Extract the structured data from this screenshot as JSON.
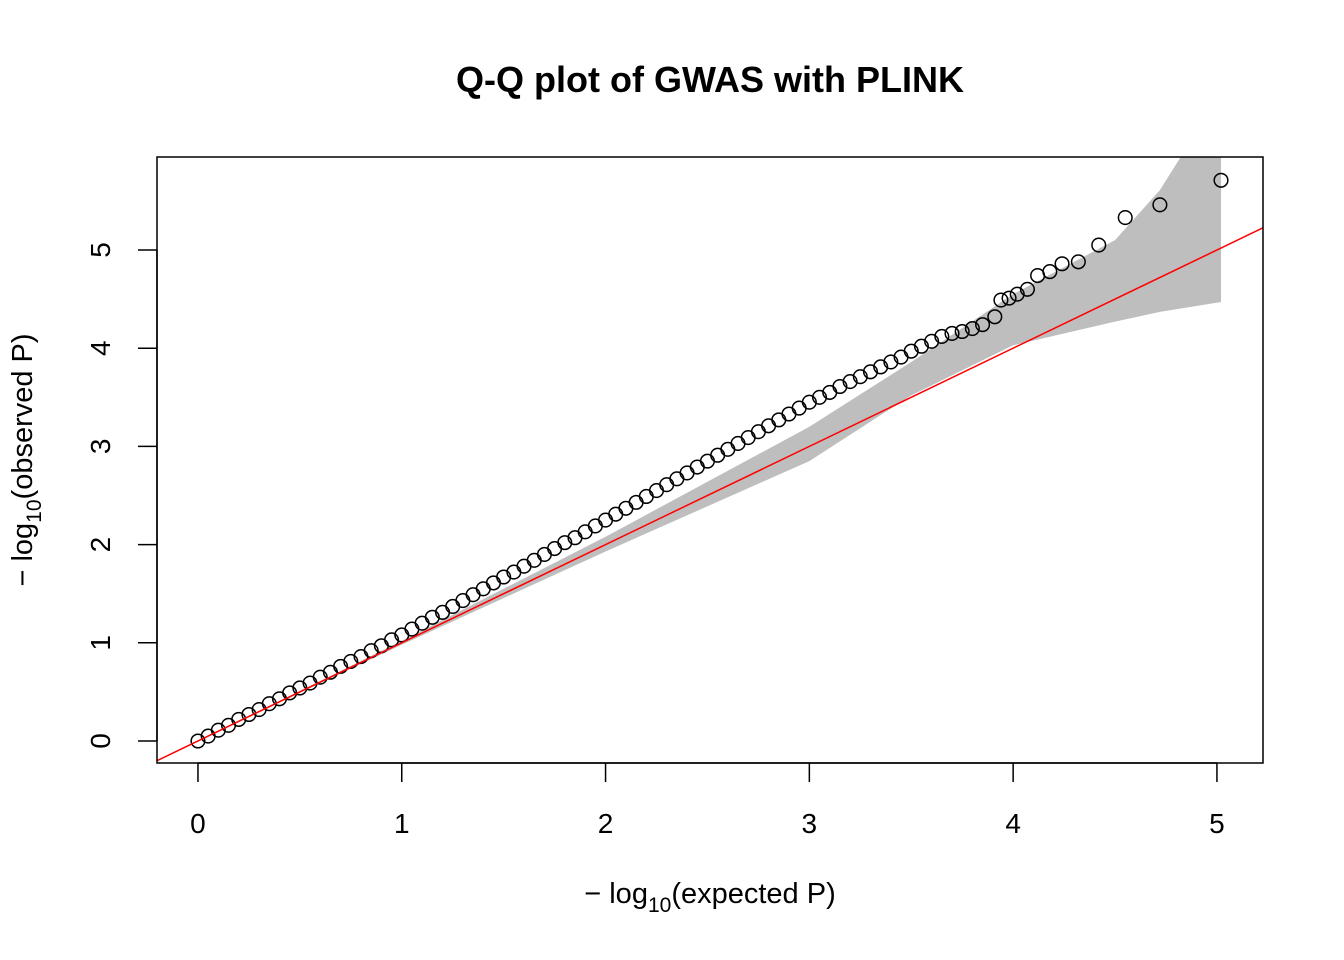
{
  "chart_data": {
    "type": "scatter",
    "title": "Q-Q plot of GWAS with PLINK",
    "x_label": {
      "prefix": "− log",
      "subscript": "10",
      "suffix": "(expected P)"
    },
    "y_label": {
      "prefix": "− log",
      "subscript": "10",
      "suffix": "(observed P)"
    },
    "xlim": [
      -0.201,
      5.226
    ],
    "ylim": [
      -0.224,
      5.947
    ],
    "xticks": [
      0,
      1,
      2,
      3,
      4,
      5
    ],
    "yticks": [
      0,
      1,
      2,
      3,
      4,
      5
    ],
    "x": [
      0,
      0.05,
      0.1,
      0.15,
      0.2,
      0.25,
      0.3,
      0.35,
      0.4,
      0.45,
      0.5,
      0.55,
      0.6,
      0.65,
      0.7,
      0.75,
      0.8,
      0.85,
      0.9,
      0.95,
      1,
      1.05,
      1.1,
      1.15,
      1.2,
      1.25,
      1.3,
      1.35,
      1.4,
      1.45,
      1.5,
      1.55,
      1.6,
      1.65,
      1.7,
      1.75,
      1.8,
      1.85,
      1.9,
      1.95,
      2,
      2.05,
      2.1,
      2.15,
      2.2,
      2.25,
      2.3,
      2.35,
      2.4,
      2.45,
      2.5,
      2.55,
      2.6,
      2.65,
      2.7,
      2.75,
      2.8,
      2.85,
      2.9,
      2.95,
      3,
      3.05,
      3.1,
      3.15,
      3.2,
      3.25,
      3.3,
      3.35,
      3.4,
      3.45,
      3.5,
      3.55,
      3.6,
      3.65,
      3.7,
      3.75,
      3.8,
      3.85,
      3.91,
      3.94,
      3.98,
      4.02,
      4.07,
      4.12,
      4.18,
      4.24,
      4.32,
      4.42,
      4.55,
      4.72,
      5.02
    ],
    "values": [
      0,
      0.05,
      0.11,
      0.16,
      0.22,
      0.27,
      0.32,
      0.38,
      0.43,
      0.49,
      0.54,
      0.59,
      0.65,
      0.7,
      0.76,
      0.81,
      0.86,
      0.92,
      0.97,
      1.03,
      1.08,
      1.14,
      1.2,
      1.26,
      1.31,
      1.37,
      1.43,
      1.49,
      1.55,
      1.61,
      1.67,
      1.72,
      1.78,
      1.84,
      1.9,
      1.96,
      2.02,
      2.07,
      2.13,
      2.19,
      2.25,
      2.31,
      2.37,
      2.43,
      2.49,
      2.55,
      2.61,
      2.67,
      2.73,
      2.79,
      2.85,
      2.91,
      2.97,
      3.03,
      3.09,
      3.15,
      3.21,
      3.27,
      3.33,
      3.39,
      3.45,
      3.5,
      3.55,
      3.61,
      3.66,
      3.71,
      3.76,
      3.81,
      3.86,
      3.91,
      3.97,
      4.02,
      4.07,
      4.12,
      4.15,
      4.17,
      4.2,
      4.24,
      4.32,
      4.49,
      4.51,
      4.55,
      4.6,
      4.74,
      4.78,
      4.86,
      4.88,
      5.05,
      5.33,
      5.46,
      5.71
    ],
    "color": "#000000",
    "band": {
      "x": [
        0,
        1,
        2,
        3,
        3.5,
        4,
        4.5,
        4.72,
        5.02
      ],
      "upper": [
        0,
        1.02,
        2.08,
        3.2,
        3.86,
        4.55,
        5.1,
        5.61,
        6.6
      ],
      "lower": [
        0,
        0.98,
        1.93,
        2.85,
        3.52,
        4.03,
        4.27,
        4.37,
        4.47
      ],
      "color": "#bebebe"
    },
    "reference_line": {
      "slope": 1,
      "intercept": 0,
      "color": "#ff0000"
    }
  }
}
